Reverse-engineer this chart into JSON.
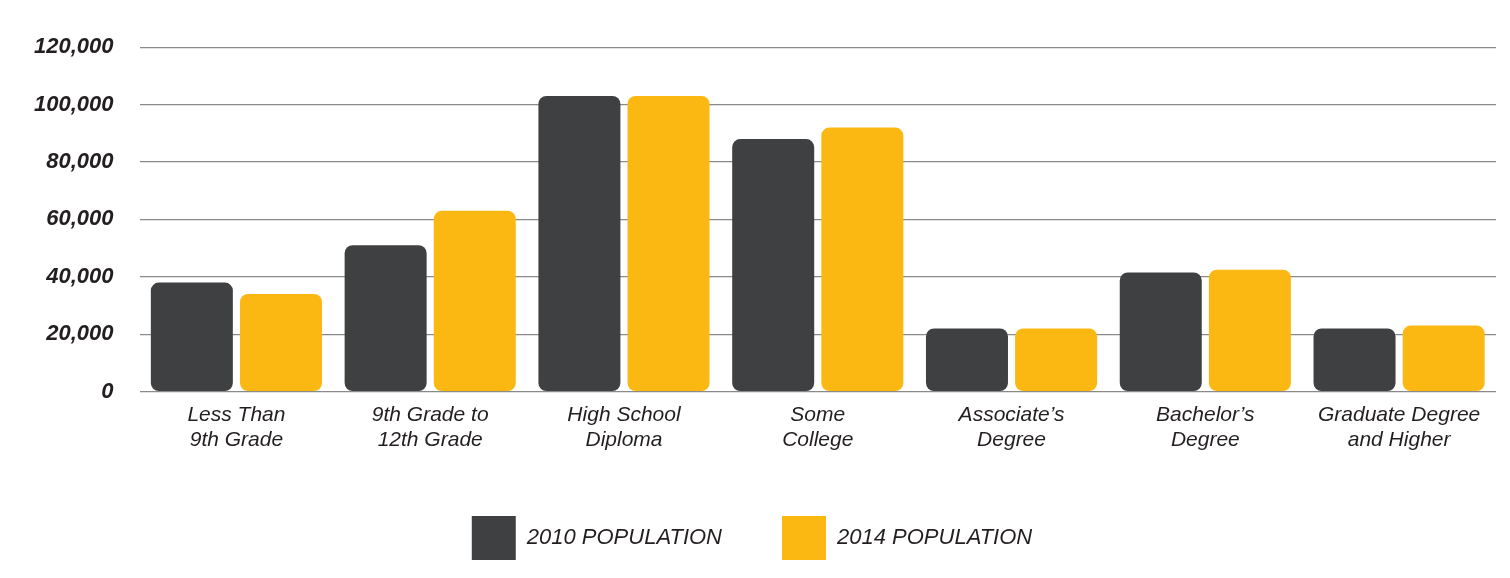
{
  "chart_data": {
    "type": "bar",
    "categories": [
      "Less Than\n9th Grade",
      "9th Grade to\n12th Grade",
      "High School\nDiploma",
      "Some\nCollege",
      "Associate’s\nDegree",
      "Bachelor’s\nDegree",
      "Graduate Degree\nand Higher"
    ],
    "series": [
      {
        "name": "2010 POPULATION",
        "color": "#3f4042",
        "values": [
          38000,
          51000,
          103000,
          88000,
          22000,
          41500,
          22000
        ]
      },
      {
        "name": "2014 POPULATION",
        "color": "#fbb813",
        "values": [
          34000,
          63000,
          103000,
          92000,
          22000,
          42500,
          23000
        ]
      }
    ],
    "ylim": [
      0,
      120000
    ],
    "yticks": [
      {
        "value": 0,
        "label": "0"
      },
      {
        "value": 20000,
        "label": "20,000"
      },
      {
        "value": 40000,
        "label": "40,000"
      },
      {
        "value": 60000,
        "label": "60,000"
      },
      {
        "value": 80000,
        "label": "80,000"
      },
      {
        "value": 100000,
        "label": "100,000"
      },
      {
        "value": 120000,
        "label": "120,000"
      }
    ],
    "grid": "y",
    "legend": "bottom"
  }
}
